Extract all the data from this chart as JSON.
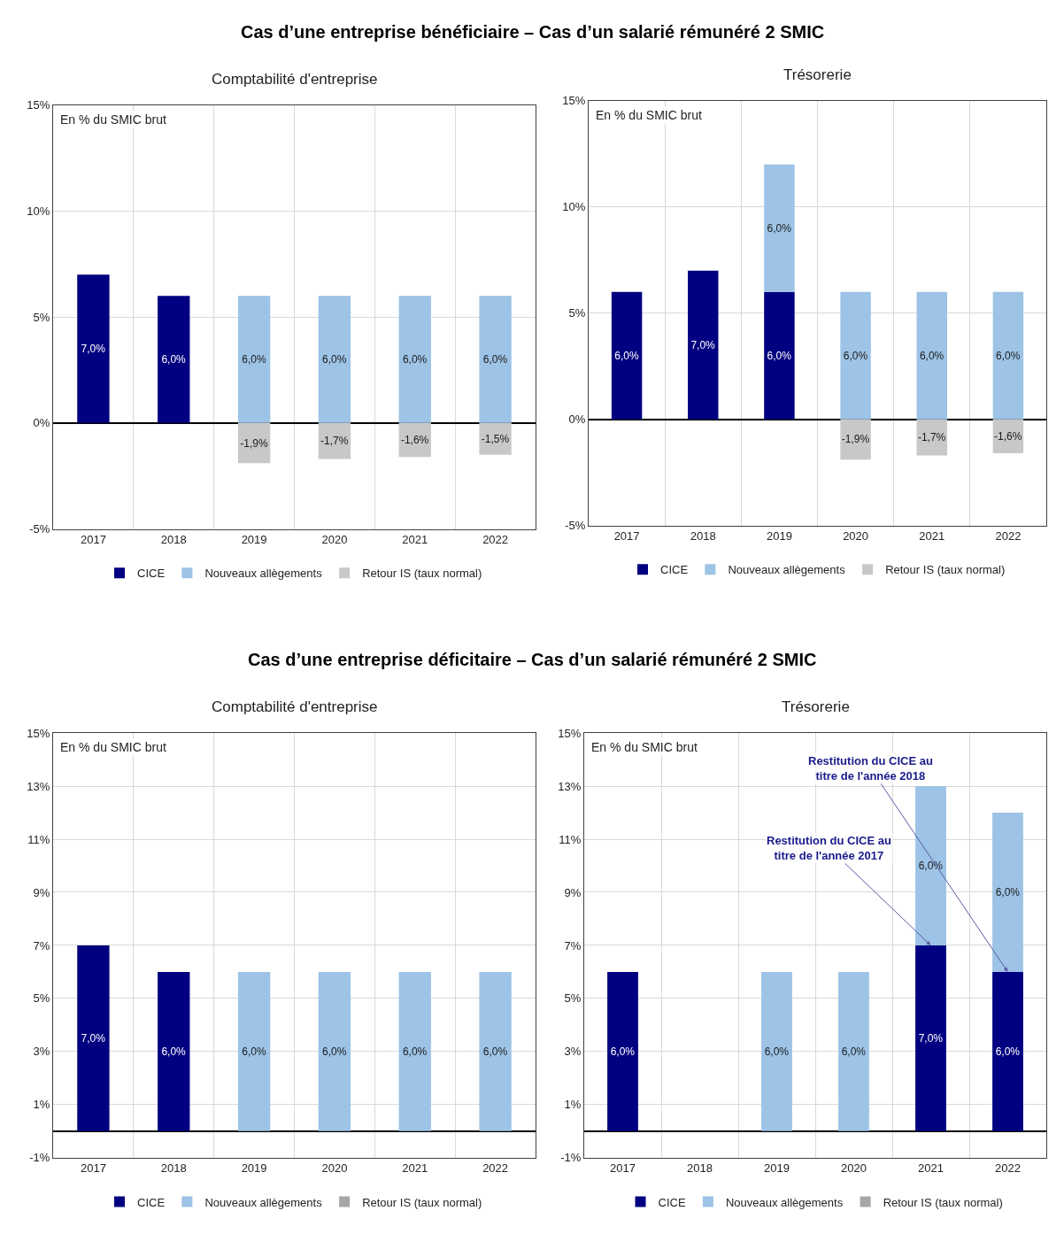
{
  "chart_data": [
    {
      "type": "bar",
      "title": "Comptabilité d'entreprise",
      "annotations": [
        "Cas d’une entreprise bénéficiaire – Cas d’un salarié rémunéré 2 SMIC",
        "En % du SMIC brut"
      ],
      "categories": [
        "2017",
        "2018",
        "2019",
        "2020",
        "2021",
        "2022"
      ],
      "stacked": true,
      "grid": true,
      "legend": "bottom",
      "ylim": [
        -5,
        15
      ],
      "yticks": [
        {
          "value": -5,
          "label": "-5%"
        },
        {
          "value": 0,
          "label": "0%"
        },
        {
          "value": 5,
          "label": "5%"
        },
        {
          "value": 10,
          "label": "10%"
        },
        {
          "value": 15,
          "label": "15%"
        }
      ],
      "series": [
        {
          "name": "CICE",
          "color": "#000080",
          "values": [
            7.0,
            6.0,
            null,
            null,
            null,
            null
          ],
          "value_labels": [
            "7,0%",
            "6,0%",
            null,
            null,
            null,
            null
          ]
        },
        {
          "name": "Nouveaux allègements",
          "color": "#9dc3e6",
          "values": [
            null,
            null,
            6.0,
            6.0,
            6.0,
            6.0
          ],
          "value_labels": [
            null,
            null,
            "6,0%",
            "6,0%",
            "6,0%",
            "6,0%"
          ]
        },
        {
          "name": "Retour IS (taux normal)",
          "color": "#c8c8c8",
          "values": [
            null,
            null,
            -1.9,
            -1.7,
            -1.6,
            -1.5
          ],
          "value_labels": [
            null,
            null,
            "-1,9%",
            "-1,7%",
            "-1,6%",
            "-1,5%"
          ]
        }
      ]
    },
    {
      "type": "bar",
      "title": "Trésorerie",
      "annotations": [
        "En % du SMIC brut"
      ],
      "categories": [
        "2017",
        "2018",
        "2019",
        "2020",
        "2021",
        "2022"
      ],
      "stacked": true,
      "grid": true,
      "legend": "bottom",
      "ylim": [
        -5,
        15
      ],
      "yticks": [
        {
          "value": -5,
          "label": "-5%"
        },
        {
          "value": 0,
          "label": "0%"
        },
        {
          "value": 5,
          "label": "5%"
        },
        {
          "value": 10,
          "label": "10%"
        },
        {
          "value": 15,
          "label": "15%"
        }
      ],
      "series": [
        {
          "name": "CICE",
          "color": "#000080",
          "values": [
            6.0,
            7.0,
            6.0,
            null,
            null,
            null
          ],
          "value_labels": [
            "6,0%",
            "7,0%",
            "6,0%",
            null,
            null,
            null
          ]
        },
        {
          "name": "Nouveaux allègements",
          "color": "#9dc3e6",
          "values": [
            null,
            null,
            6.0,
            6.0,
            6.0,
            6.0
          ],
          "value_labels": [
            null,
            null,
            "6,0%",
            "6,0%",
            "6,0%",
            "6,0%"
          ]
        },
        {
          "name": "Retour IS (taux normal)",
          "color": "#c8c8c8",
          "values": [
            null,
            null,
            null,
            -1.9,
            -1.7,
            -1.6
          ],
          "value_labels": [
            null,
            null,
            null,
            "-1,9%",
            "-1,7%",
            "-1,6%"
          ]
        }
      ]
    },
    {
      "type": "bar",
      "title": "Comptabilité d'entreprise",
      "annotations": [
        "Cas d’une entreprise déficitaire – Cas d’un salarié rémunéré 2 SMIC",
        "En % du SMIC brut"
      ],
      "categories": [
        "2017",
        "2018",
        "2019",
        "2020",
        "2021",
        "2022"
      ],
      "stacked": true,
      "grid": true,
      "legend": "bottom",
      "ylim": [
        -1,
        15
      ],
      "yticks": [
        {
          "value": -1,
          "label": "-1%"
        },
        {
          "value": 1,
          "label": "1%"
        },
        {
          "value": 3,
          "label": "3%"
        },
        {
          "value": 5,
          "label": "5%"
        },
        {
          "value": 7,
          "label": "7%"
        },
        {
          "value": 9,
          "label": "9%"
        },
        {
          "value": 11,
          "label": "11%"
        },
        {
          "value": 13,
          "label": "13%"
        },
        {
          "value": 15,
          "label": "15%"
        }
      ],
      "series": [
        {
          "name": "CICE",
          "color": "#000080",
          "values": [
            7.0,
            6.0,
            null,
            null,
            null,
            null
          ],
          "value_labels": [
            "7,0%",
            "6,0%",
            null,
            null,
            null,
            null
          ]
        },
        {
          "name": "Nouveaux allègements",
          "color": "#9dc3e6",
          "values": [
            null,
            null,
            6.0,
            6.0,
            6.0,
            6.0
          ],
          "value_labels": [
            null,
            null,
            "6,0%",
            "6,0%",
            "6,0%",
            "6,0%"
          ]
        },
        {
          "name": "Retour IS (taux normal)",
          "color": "#a6a6a6",
          "values": [
            null,
            null,
            null,
            null,
            null,
            null
          ]
        }
      ]
    },
    {
      "type": "bar",
      "title": "Trésorerie",
      "annotations": [
        "En % du SMIC brut",
        {
          "text": "Restitution du CICE au titre de l'année 2017",
          "x": "2021",
          "y": 7
        },
        {
          "text": "Restitution du CICE au titre de l'année 2018",
          "x": "2022",
          "y": 6
        }
      ],
      "categories": [
        "2017",
        "2018",
        "2019",
        "2020",
        "2021",
        "2022"
      ],
      "stacked": true,
      "grid": true,
      "legend": "bottom",
      "ylim": [
        -1,
        15
      ],
      "yticks": [
        {
          "value": -1,
          "label": "-1%"
        },
        {
          "value": 1,
          "label": "1%"
        },
        {
          "value": 3,
          "label": "3%"
        },
        {
          "value": 5,
          "label": "5%"
        },
        {
          "value": 7,
          "label": "7%"
        },
        {
          "value": 9,
          "label": "9%"
        },
        {
          "value": 11,
          "label": "11%"
        },
        {
          "value": 13,
          "label": "13%"
        },
        {
          "value": 15,
          "label": "15%"
        }
      ],
      "series": [
        {
          "name": "CICE",
          "color": "#000080",
          "values": [
            6.0,
            null,
            null,
            null,
            7.0,
            6.0
          ],
          "value_labels": [
            "6,0%",
            null,
            null,
            null,
            "7,0%",
            "6,0%"
          ]
        },
        {
          "name": "Nouveaux allègements",
          "color": "#9dc3e6",
          "values": [
            null,
            null,
            6.0,
            6.0,
            6.0,
            6.0
          ],
          "value_labels": [
            null,
            null,
            "6,0%",
            "6,0%",
            "6,0%",
            "6,0%"
          ]
        },
        {
          "name": "Retour IS (taux normal)",
          "color": "#a6a6a6",
          "values": [
            null,
            null,
            null,
            null,
            null,
            null
          ]
        }
      ]
    }
  ]
}
